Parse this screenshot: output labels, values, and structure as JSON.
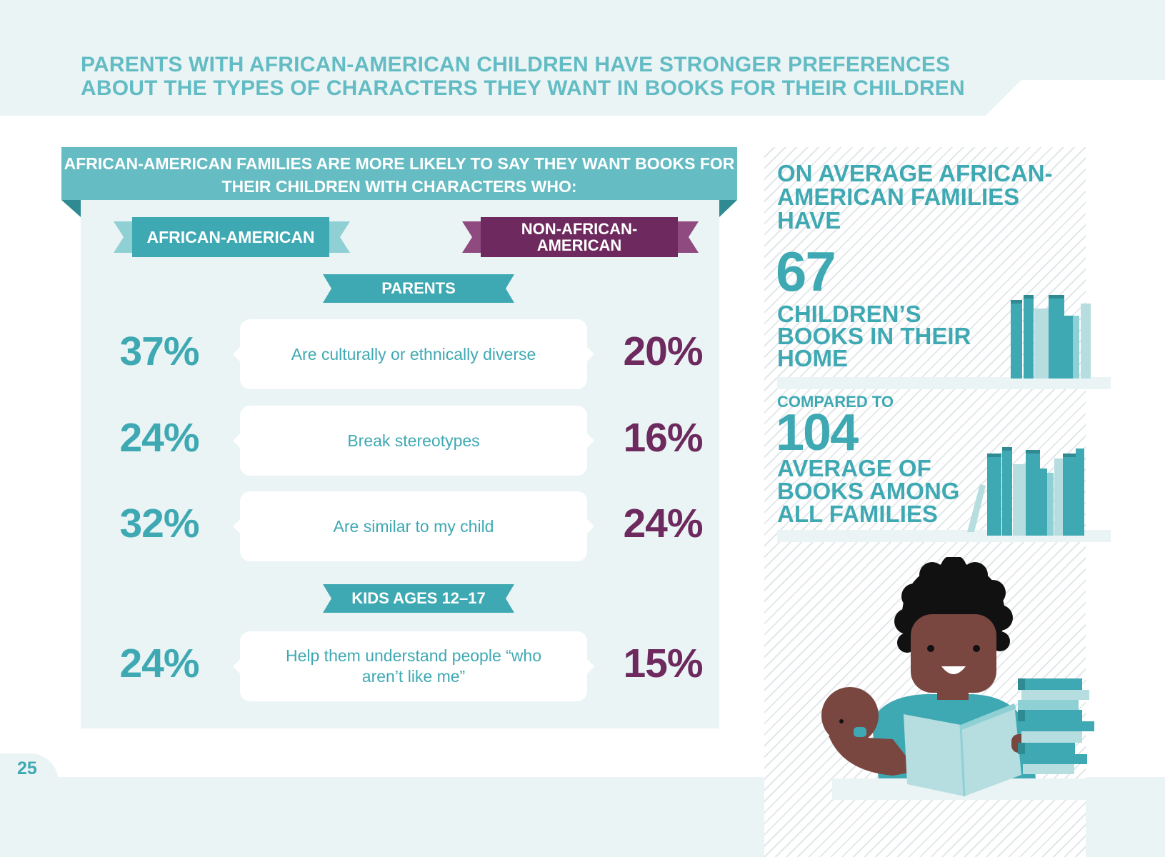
{
  "page": {
    "title": "PARENTS WITH AFRICAN-AMERICAN CHILDREN HAVE STRONGER PREFERENCES ABOUT THE TYPES OF CHARACTERS THEY WANT IN BOOKS FOR THEIR CHILDREN",
    "page_number": "25"
  },
  "panel": {
    "heading": "AFRICAN-AMERICAN FAMILIES ARE MORE LIKELY TO SAY THEY WANT BOOKS FOR THEIR CHILDREN WITH CHARACTERS WHO:",
    "legend_aa": "AFRICAN-AMERICAN",
    "legend_naa": "NON-AFRICAN-AMERICAN",
    "section_parents": "PARENTS",
    "section_kids": "KIDS AGES 12–17",
    "parents_rows": [
      {
        "label": "Are culturally or ethnically diverse",
        "aa": "37%",
        "naa": "20%"
      },
      {
        "label": "Break stereotypes",
        "aa": "24%",
        "naa": "16%"
      },
      {
        "label": "Are similar to my child",
        "aa": "32%",
        "naa": "24%"
      }
    ],
    "kids_rows": [
      {
        "label": "Help them understand people “who aren’t like me”",
        "aa": "24%",
        "naa": "15%"
      }
    ]
  },
  "sidebar": {
    "intro": "ON AVERAGE AFRICAN-AMERICAN FAMILIES HAVE",
    "number_aa": "67",
    "label_aa": "CHILDREN’S BOOKS IN THEIR HOME",
    "compared": "COMPARED TO",
    "number_all": "104",
    "label_all": "AVERAGE OF BOOKS AMONG ALL FAMILIES"
  },
  "colors": {
    "teal": "#3fa9b3",
    "plum": "#6e2a5e",
    "light_teal_bg": "#eaf4f5"
  }
}
